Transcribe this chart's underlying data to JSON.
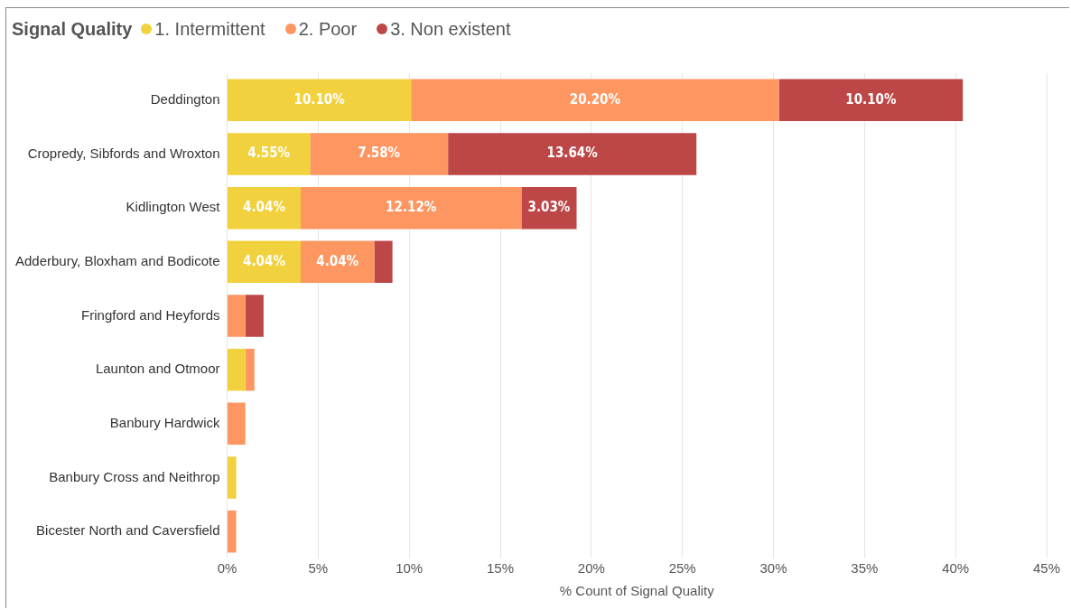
{
  "chart_data": {
    "type": "bar",
    "orientation": "horizontal",
    "stacked": true,
    "legend_title": "Signal Quality",
    "legend": "top left",
    "xlabel": "% Count of Signal Quality",
    "grid": "x",
    "categories": [
      "Deddington",
      "Cropredy, Sibfords and Wroxton",
      "Kidlington West",
      "Adderbury, Bloxham and Bodicote",
      "Fringford and Heyfords",
      "Launton and Otmoor",
      "Banbury Hardwick",
      "Banbury Cross and Neithrop",
      "Bicester North and Caversfield"
    ],
    "xlim": [
      0,
      45
    ],
    "xticks": [
      {
        "value": 0,
        "label": "0%"
      },
      {
        "value": 5,
        "label": "5%"
      },
      {
        "value": 10,
        "label": "10%"
      },
      {
        "value": 15,
        "label": "15%"
      },
      {
        "value": 20,
        "label": "20%"
      },
      {
        "value": 25,
        "label": "25%"
      },
      {
        "value": 30,
        "label": "30%"
      },
      {
        "value": 35,
        "label": "35%"
      },
      {
        "value": 40,
        "label": "40%"
      },
      {
        "value": 45,
        "label": "45%"
      }
    ],
    "series": [
      {
        "name": "1. Intermittent",
        "color": "#f2d13e",
        "values": [
          10.1,
          4.55,
          4.04,
          4.04,
          null,
          1.0,
          null,
          0.5,
          null
        ],
        "value_labels": [
          "10.10%",
          "4.55%",
          "4.04%",
          "4.04%",
          null,
          null,
          null,
          null,
          null
        ]
      },
      {
        "name": "2. Poor",
        "color": "#fd9661",
        "values": [
          20.2,
          7.58,
          12.12,
          4.04,
          1.0,
          0.5,
          1.0,
          null,
          0.5
        ],
        "value_labels": [
          "20.20%",
          "7.58%",
          "12.12%",
          "4.04%",
          null,
          null,
          null,
          null,
          null
        ]
      },
      {
        "name": "3. Non existent",
        "color": "#bd4747",
        "values": [
          10.1,
          13.64,
          3.03,
          1.0,
          1.0,
          null,
          null,
          null,
          null
        ],
        "value_labels": [
          "10.10%",
          "13.64%",
          "3.03%",
          null,
          null,
          null,
          null,
          null,
          null
        ]
      }
    ]
  }
}
